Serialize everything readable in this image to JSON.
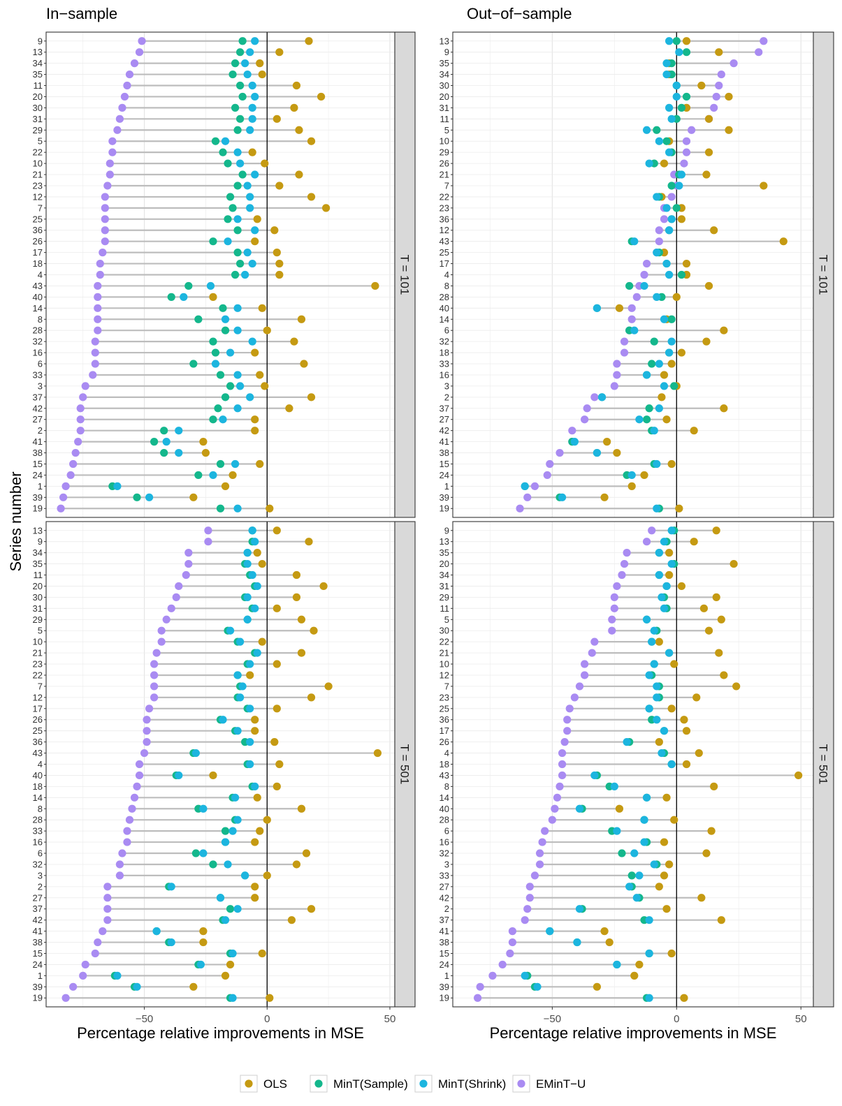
{
  "figure": {
    "y_axis_title": "Series number",
    "legend": [
      {
        "key": "ols",
        "label": "OLS",
        "color": "#C59A12"
      },
      {
        "key": "mint_sample",
        "label": "MinT(Sample)",
        "color": "#14B78C"
      },
      {
        "key": "mint_shrink",
        "label": "MinT(Shrink)",
        "color": "#1CB5DF"
      },
      {
        "key": "emint_u",
        "label": "EMinT−U",
        "color": "#A98BF2"
      }
    ]
  },
  "chart_data": [
    {
      "type": "dot-range",
      "title": "In−sample",
      "facet": "T = 101",
      "xlabel": "Percentage relative improvements in MSE",
      "ylabel": "Series number",
      "xlim": [
        -90,
        52
      ],
      "xticks": [
        -50,
        0,
        50
      ],
      "categories": [
        "9",
        "13",
        "34",
        "35",
        "11",
        "20",
        "30",
        "31",
        "29",
        "5",
        "22",
        "10",
        "21",
        "23",
        "12",
        "7",
        "25",
        "36",
        "26",
        "17",
        "18",
        "4",
        "43",
        "40",
        "14",
        "8",
        "28",
        "32",
        "16",
        "6",
        "33",
        "3",
        "37",
        "42",
        "27",
        "2",
        "41",
        "38",
        "15",
        "24",
        "1",
        "39",
        "19"
      ],
      "series": [
        {
          "name": "OLS",
          "values": [
            17,
            5,
            -3,
            -2,
            12,
            22,
            11,
            4,
            13,
            18,
            -6,
            -1,
            13,
            5,
            18,
            24,
            -4,
            3,
            -5,
            4,
            5,
            5,
            44,
            -22,
            -2,
            14,
            0,
            11,
            -5,
            15,
            -3,
            -1,
            18,
            9,
            -5,
            -5,
            -26,
            -25,
            -3,
            -14,
            -17,
            -30,
            1
          ]
        },
        {
          "name": "MinT(Sample)",
          "values": [
            -10,
            -11,
            -13,
            -14,
            -11,
            -10,
            -13,
            -11,
            -12,
            -21,
            -18,
            -16,
            -10,
            -12,
            -15,
            -14,
            -16,
            -12,
            -22,
            -12,
            -11,
            -13,
            -32,
            -39,
            -18,
            -28,
            -17,
            -22,
            -21,
            -30,
            -19,
            -15,
            -17,
            -20,
            -22,
            -42,
            -46,
            -42,
            -19,
            -28,
            -63,
            -53,
            -19
          ]
        },
        {
          "name": "MinT(Shrink)",
          "values": [
            -5,
            -7,
            -9,
            -8,
            -6,
            -5,
            -6,
            -6,
            -7,
            -17,
            -12,
            -11,
            -5,
            -8,
            -7,
            -7,
            -12,
            -5,
            -16,
            -8,
            -6,
            -9,
            -23,
            -34,
            -12,
            -17,
            -12,
            -6,
            -15,
            -21,
            -12,
            -11,
            -7,
            -12,
            -18,
            -36,
            -41,
            -36,
            -13,
            -22,
            -61,
            -48,
            -12
          ]
        },
        {
          "name": "EMinT−U",
          "values": [
            -51,
            -52,
            -54,
            -56,
            -57,
            -58,
            -59,
            -60,
            -61,
            -63,
            -63,
            -64,
            -64,
            -65,
            -66,
            -66,
            -66,
            -66,
            -66,
            -67,
            -68,
            -68,
            -69,
            -69,
            -69,
            -69,
            -69,
            -70,
            -70,
            -70,
            -71,
            -74,
            -75,
            -76,
            -76,
            -76,
            -77,
            -78,
            -79,
            -80,
            -82,
            -83,
            -84
          ]
        }
      ]
    },
    {
      "type": "dot-range",
      "title": "Out−of−sample",
      "facet": "T = 101",
      "xlabel": "Percentage relative improvements in MSE",
      "ylabel": "Series number",
      "xlim": [
        -90,
        55
      ],
      "xticks": [
        -50,
        0,
        50
      ],
      "categories": [
        "13",
        "9",
        "35",
        "34",
        "30",
        "20",
        "31",
        "11",
        "5",
        "10",
        "29",
        "26",
        "21",
        "7",
        "22",
        "23",
        "36",
        "12",
        "43",
        "25",
        "17",
        "4",
        "8",
        "28",
        "40",
        "14",
        "6",
        "32",
        "18",
        "33",
        "16",
        "3",
        "2",
        "37",
        "27",
        "42",
        "41",
        "38",
        "15",
        "24",
        "1",
        "39",
        "19"
      ],
      "series": [
        {
          "name": "OLS",
          "values": [
            4,
            17,
            -3,
            -3,
            10,
            21,
            4,
            13,
            21,
            -3,
            13,
            -5,
            12,
            35,
            -6,
            2,
            2,
            15,
            43,
            -5,
            4,
            4,
            13,
            0,
            -23,
            -4,
            19,
            12,
            2,
            -2,
            -5,
            0,
            -6,
            19,
            -4,
            7,
            -28,
            -24,
            -2,
            -13,
            -18,
            -29,
            1
          ]
        },
        {
          "name": "MinT(Sample)",
          "values": [
            0,
            4,
            -2,
            -2,
            0,
            4,
            2,
            0,
            -8,
            -4,
            -2,
            -9,
            1,
            -2,
            -7,
            0,
            -2,
            -3,
            -18,
            -7,
            -4,
            2,
            -19,
            -6,
            -32,
            -2,
            -19,
            -9,
            -3,
            -10,
            -12,
            -1,
            -30,
            -11,
            -12,
            -10,
            -42,
            -32,
            -9,
            -20,
            -61,
            -47,
            -7
          ]
        },
        {
          "name": "MinT(Shrink)",
          "values": [
            -3,
            1,
            -4,
            -4,
            0,
            0,
            -3,
            -2,
            -12,
            -7,
            -3,
            -11,
            2,
            1,
            -8,
            -4,
            -2,
            -3,
            -17,
            -8,
            -4,
            -3,
            -13,
            -8,
            -32,
            -5,
            -17,
            -2,
            -3,
            -7,
            -12,
            -5,
            -30,
            -7,
            -15,
            -9,
            -41,
            -32,
            -8,
            -18,
            -61,
            -46,
            -8
          ]
        },
        {
          "name": "EMinT−U",
          "values": [
            35,
            33,
            23,
            18,
            17,
            16,
            15,
            13,
            6,
            4,
            4,
            3,
            -1,
            0,
            -2,
            -5,
            -5,
            -7,
            -7,
            -8,
            -12,
            -13,
            -15,
            -16,
            -18,
            -18,
            -19,
            -21,
            -21,
            -24,
            -24,
            -25,
            -33,
            -36,
            -37,
            -42,
            -42,
            -47,
            -51,
            -52,
            -57,
            -60,
            -63
          ]
        }
      ]
    },
    {
      "type": "dot-range",
      "title": "",
      "facet": "T = 501",
      "xlabel": "Percentage relative improvements in MSE",
      "ylabel": "Series number",
      "xlim": [
        -90,
        52
      ],
      "xticks": [
        -50,
        0,
        50
      ],
      "categories": [
        "13",
        "9",
        "34",
        "35",
        "11",
        "20",
        "30",
        "31",
        "29",
        "5",
        "10",
        "21",
        "23",
        "22",
        "7",
        "12",
        "17",
        "26",
        "25",
        "36",
        "43",
        "4",
        "40",
        "18",
        "14",
        "8",
        "28",
        "33",
        "16",
        "6",
        "32",
        "3",
        "2",
        "27",
        "37",
        "42",
        "41",
        "38",
        "15",
        "24",
        "1",
        "39",
        "19"
      ],
      "series": [
        {
          "name": "OLS",
          "values": [
            4,
            17,
            -4,
            -2,
            12,
            23,
            12,
            4,
            14,
            19,
            -2,
            14,
            4,
            -7,
            25,
            18,
            4,
            -5,
            -5,
            3,
            45,
            5,
            -22,
            4,
            -4,
            14,
            0,
            -3,
            -5,
            16,
            12,
            0,
            -5,
            -5,
            18,
            10,
            -26,
            -26,
            -2,
            -15,
            -17,
            -30,
            1
          ]
        },
        {
          "name": "MinT(Sample)",
          "values": [
            -6,
            -6,
            -8,
            -9,
            -7,
            -5,
            -9,
            -6,
            -8,
            -16,
            -12,
            -5,
            -8,
            -12,
            -11,
            -12,
            -8,
            -19,
            -13,
            -9,
            -30,
            -8,
            -37,
            -6,
            -14,
            -28,
            -13,
            -17,
            -17,
            -29,
            -22,
            -9,
            -40,
            -19,
            -15,
            -18,
            -45,
            -40,
            -15,
            -28,
            -62,
            -54,
            -15
          ]
        },
        {
          "name": "MinT(Shrink)",
          "values": [
            -6,
            -5,
            -8,
            -8,
            -6,
            -4,
            -8,
            -5,
            -8,
            -15,
            -11,
            -4,
            -7,
            -12,
            -10,
            -11,
            -7,
            -18,
            -12,
            -7,
            -29,
            -7,
            -36,
            -5,
            -13,
            -26,
            -12,
            -14,
            -17,
            -26,
            -16,
            -9,
            -39,
            -19,
            -12,
            -17,
            -45,
            -39,
            -14,
            -27,
            -61,
            -53,
            -14
          ]
        },
        {
          "name": "EMinT−U",
          "values": [
            -24,
            -24,
            -32,
            -32,
            -33,
            -36,
            -37,
            -39,
            -41,
            -43,
            -43,
            -45,
            -46,
            -46,
            -46,
            -46,
            -48,
            -49,
            -49,
            -49,
            -50,
            -52,
            -52,
            -53,
            -54,
            -55,
            -56,
            -57,
            -57,
            -59,
            -60,
            -60,
            -65,
            -65,
            -65,
            -65,
            -67,
            -69,
            -70,
            -74,
            -75,
            -79,
            -82
          ]
        }
      ]
    },
    {
      "type": "dot-range",
      "title": "",
      "facet": "T = 501",
      "xlabel": "Percentage relative improvements in MSE",
      "ylabel": "Series number",
      "xlim": [
        -90,
        55
      ],
      "xticks": [
        -50,
        0,
        50
      ],
      "categories": [
        "9",
        "13",
        "35",
        "20",
        "34",
        "31",
        "29",
        "11",
        "5",
        "30",
        "22",
        "21",
        "10",
        "12",
        "7",
        "23",
        "25",
        "36",
        "17",
        "26",
        "4",
        "18",
        "43",
        "8",
        "14",
        "40",
        "28",
        "6",
        "16",
        "32",
        "3",
        "33",
        "27",
        "42",
        "2",
        "37",
        "41",
        "38",
        "15",
        "24",
        "1",
        "39",
        "19"
      ],
      "series": [
        {
          "name": "OLS",
          "values": [
            16,
            7,
            -3,
            23,
            -3,
            2,
            16,
            11,
            18,
            13,
            -7,
            17,
            -1,
            19,
            24,
            8,
            -2,
            3,
            4,
            -7,
            9,
            4,
            49,
            15,
            -4,
            -23,
            -1,
            14,
            -5,
            12,
            -3,
            -5,
            -7,
            10,
            -4,
            18,
            -29,
            -27,
            -2,
            -15,
            -17,
            -32,
            3
          ]
        },
        {
          "name": "MinT(Sample)",
          "values": [
            -1,
            -4,
            -7,
            -1,
            -7,
            -4,
            -5,
            -4,
            -12,
            -8,
            -10,
            -3,
            -9,
            -10,
            -7,
            -7,
            -11,
            -10,
            -5,
            -19,
            -5,
            -2,
            -32,
            -27,
            -12,
            -38,
            -13,
            -26,
            -12,
            -22,
            -8,
            -18,
            -18,
            -15,
            -38,
            -13,
            -51,
            -40,
            -11,
            -24,
            -60,
            -57,
            -12
          ]
        },
        {
          "name": "MinT(Shrink)",
          "values": [
            -2,
            -5,
            -7,
            -2,
            -7,
            -4,
            -6,
            -5,
            -12,
            -9,
            -10,
            -3,
            -9,
            -11,
            -8,
            -8,
            -11,
            -8,
            -5,
            -20,
            -6,
            -2,
            -33,
            -25,
            -12,
            -39,
            -13,
            -24,
            -13,
            -17,
            -9,
            -15,
            -19,
            -16,
            -39,
            -11,
            -51,
            -40,
            -11,
            -24,
            -61,
            -56,
            -11
          ]
        },
        {
          "name": "EMinT−U",
          "values": [
            -10,
            -12,
            -20,
            -21,
            -22,
            -24,
            -25,
            -25,
            -26,
            -26,
            -33,
            -34,
            -37,
            -37,
            -39,
            -41,
            -43,
            -44,
            -44,
            -45,
            -46,
            -46,
            -46,
            -47,
            -48,
            -49,
            -50,
            -53,
            -54,
            -55,
            -55,
            -57,
            -59,
            -59,
            -60,
            -61,
            -66,
            -66,
            -67,
            -70,
            -74,
            -79,
            -80
          ]
        }
      ]
    }
  ]
}
